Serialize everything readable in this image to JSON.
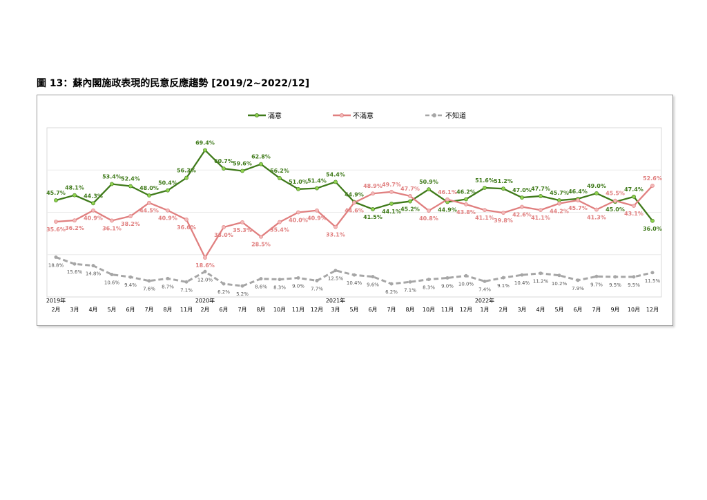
{
  "title": "圖 13：蘇內閣施政表現的民意反應趨勢  [2019/2~2022/12]",
  "chart_data": {
    "type": "line",
    "categories": [
      "2月",
      "3月",
      "4月",
      "5月",
      "6月",
      "7月",
      "8月",
      "11月",
      "2月",
      "6月",
      "7月",
      "8月",
      "10月",
      "11月",
      "12月",
      "3月",
      "5月",
      "6月",
      "7月",
      "8月",
      "10月",
      "11月",
      "12月",
      "1月",
      "2月",
      "3月",
      "4月",
      "5月",
      "6月",
      "7月",
      "9月",
      "10月",
      "12月"
    ],
    "year_labels": [
      {
        "index": 0,
        "label": "2019年"
      },
      {
        "index": 8,
        "label": "2020年"
      },
      {
        "index": 15,
        "label": "2021年"
      },
      {
        "index": 23,
        "label": "2022年"
      }
    ],
    "ylim": [
      0,
      80
    ],
    "series": [
      {
        "name": "滿意",
        "color": "#3f7a1a",
        "marker": "#8fd14f",
        "values": [
          45.7,
          48.1,
          44.3,
          53.4,
          52.4,
          48.0,
          50.4,
          56.3,
          69.4,
          60.7,
          59.6,
          62.8,
          56.2,
          51.0,
          51.4,
          54.4,
          44.9,
          41.5,
          44.1,
          45.2,
          50.9,
          44.9,
          46.2,
          51.6,
          51.2,
          47.0,
          47.7,
          45.7,
          46.4,
          49.0,
          45.0,
          47.4,
          36.0
        ]
      },
      {
        "name": "不滿意",
        "color": "#e07f7f",
        "marker": "#f2b8b8",
        "values": [
          35.6,
          36.2,
          40.9,
          36.1,
          38.2,
          44.5,
          40.9,
          36.6,
          18.6,
          33.0,
          35.3,
          28.5,
          35.4,
          40.0,
          40.9,
          33.1,
          44.6,
          48.9,
          49.7,
          47.7,
          40.8,
          46.1,
          43.8,
          41.1,
          39.8,
          42.6,
          41.1,
          44.2,
          45.7,
          41.3,
          45.5,
          43.1,
          52.6
        ]
      },
      {
        "name": "不知道",
        "color": "#a6a6a6",
        "marker": "#a6a6a6",
        "values": [
          18.8,
          15.6,
          14.8,
          10.6,
          9.4,
          7.6,
          8.7,
          7.1,
          12.0,
          6.2,
          5.2,
          8.6,
          8.3,
          9.0,
          7.7,
          12.5,
          10.4,
          9.6,
          6.2,
          7.1,
          8.3,
          9.0,
          10.0,
          7.4,
          9.1,
          10.4,
          11.2,
          10.2,
          7.9,
          9.7,
          9.5,
          9.5,
          11.5
        ]
      }
    ],
    "legend_position": "top-center",
    "grid": "horizontal"
  }
}
